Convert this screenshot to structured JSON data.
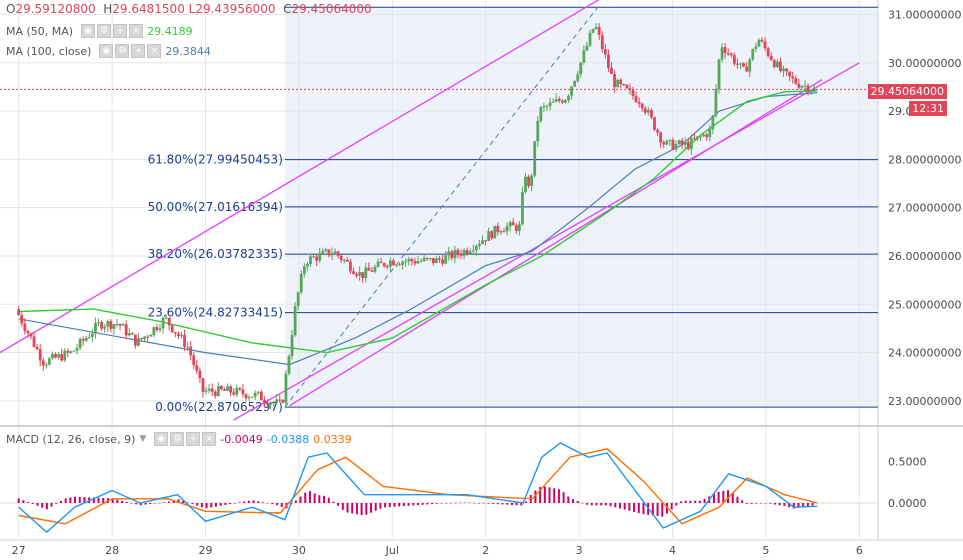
{
  "header": {
    "o_label": "O",
    "o_value": "29.59120800",
    "h_label": "H",
    "h_value": "29.6481500",
    "l_overlap": "29.6481500 L29.43956000",
    "c_label": "C",
    "c_value": "29.45064000"
  },
  "indicators": {
    "ma50": {
      "label": "MA (50, MA)",
      "value": "29.4189",
      "color": "#33cc33"
    },
    "ma100": {
      "label": "MA (100, close)",
      "value": "29.3844",
      "color": "#4a7fb0"
    },
    "macd": {
      "label": "MACD (12, 26, close, 9)",
      "v1": "-0.0049",
      "v2": "-0.0388",
      "v3": "0.0339",
      "c1": "#cc0066",
      "c2": "#2196f3",
      "c3": "#ff6d00"
    }
  },
  "price_tag": {
    "value": "29.45064000",
    "color": "#e0455a"
  },
  "time_tag": {
    "value": "12:31",
    "color": "#e0455a"
  },
  "colors": {
    "up": "#57a65b",
    "down": "#e0455a",
    "channel": "#e040fb",
    "fib": "#1a3e8c",
    "shade": "#eef2fb",
    "grid": "#e6e6e6"
  },
  "chart_data": {
    "type": "candlestick",
    "price_axis": {
      "min": 22.5,
      "max": 31.3,
      "ticks": [
        "23.00000000",
        "24.00000000",
        "25.00000000",
        "26.00000000",
        "27.00000000",
        "28.00000000",
        "29.00000000",
        "30.00000000",
        "31.00000000"
      ]
    },
    "x_axis": {
      "labels": [
        "27",
        "28",
        "29",
        "30",
        "Jul",
        "2",
        "3",
        "4",
        "5",
        "6"
      ]
    },
    "fibonacci": [
      {
        "label": "0.00%(22.87065297)",
        "value": 22.87065297
      },
      {
        "label": "23.60%(24.82733415)",
        "value": 24.82733415
      },
      {
        "label": "38.20%(26.03782335)",
        "value": 26.03782335
      },
      {
        "label": "50.00%(27.01616394)",
        "value": 27.01616394
      },
      {
        "label": "61.80%(27.99450453)",
        "value": 27.99450453
      },
      {
        "label": "",
        "value": 31.15
      }
    ],
    "close_path": [
      {
        "d": 27.0,
        "v": 24.9
      },
      {
        "d": 27.3,
        "v": 23.8
      },
      {
        "d": 27.6,
        "v": 24.0
      },
      {
        "d": 27.9,
        "v": 24.6
      },
      {
        "d": 28.1,
        "v": 24.6
      },
      {
        "d": 28.3,
        "v": 24.2
      },
      {
        "d": 28.6,
        "v": 24.7
      },
      {
        "d": 28.85,
        "v": 24.1
      },
      {
        "d": 29.0,
        "v": 23.2
      },
      {
        "d": 29.3,
        "v": 23.2
      },
      {
        "d": 29.6,
        "v": 23.1
      },
      {
        "d": 29.85,
        "v": 22.9
      },
      {
        "d": 30.0,
        "v": 25.0
      },
      {
        "d": 30.1,
        "v": 25.9
      },
      {
        "d": 30.4,
        "v": 26.1
      },
      {
        "d": 30.7,
        "v": 25.6
      },
      {
        "d": 31.0,
        "v": 25.9
      },
      {
        "d": 31.5,
        "v": 25.9
      },
      {
        "d": 31.8,
        "v": 26.1
      },
      {
        "d": 32.2,
        "v": 26.6
      },
      {
        "d": 32.4,
        "v": 26.6
      },
      {
        "d": 32.45,
        "v": 27.8
      },
      {
        "d": 32.5,
        "v": 27.3
      },
      {
        "d": 32.6,
        "v": 29.0
      },
      {
        "d": 32.9,
        "v": 29.3
      },
      {
        "d": 33.05,
        "v": 30.0
      },
      {
        "d": 33.2,
        "v": 30.8
      },
      {
        "d": 33.4,
        "v": 29.6
      },
      {
        "d": 33.7,
        "v": 29.2
      },
      {
        "d": 33.95,
        "v": 28.3
      },
      {
        "d": 34.2,
        "v": 28.3
      },
      {
        "d": 34.45,
        "v": 28.6
      },
      {
        "d": 34.55,
        "v": 30.4
      },
      {
        "d": 34.8,
        "v": 29.8
      },
      {
        "d": 34.95,
        "v": 30.5
      },
      {
        "d": 35.2,
        "v": 29.8
      },
      {
        "d": 35.35,
        "v": 29.6
      },
      {
        "d": 35.55,
        "v": 29.45
      }
    ],
    "ma50_path": [
      {
        "d": 27.0,
        "v": 24.85
      },
      {
        "d": 27.8,
        "v": 24.9
      },
      {
        "d": 28.5,
        "v": 24.65
      },
      {
        "d": 29.5,
        "v": 24.2
      },
      {
        "d": 30.3,
        "v": 24.0
      },
      {
        "d": 31.0,
        "v": 24.3
      },
      {
        "d": 32.0,
        "v": 25.4
      },
      {
        "d": 32.6,
        "v": 26.0
      },
      {
        "d": 33.3,
        "v": 26.9
      },
      {
        "d": 33.8,
        "v": 27.6
      },
      {
        "d": 34.3,
        "v": 28.5
      },
      {
        "d": 34.8,
        "v": 29.2
      },
      {
        "d": 35.2,
        "v": 29.4
      },
      {
        "d": 35.55,
        "v": 29.42
      }
    ],
    "ma100_path": [
      {
        "d": 27.0,
        "v": 24.7
      },
      {
        "d": 28.0,
        "v": 24.35
      },
      {
        "d": 29.0,
        "v": 24.0
      },
      {
        "d": 29.9,
        "v": 23.75
      },
      {
        "d": 30.6,
        "v": 24.3
      },
      {
        "d": 31.2,
        "v": 24.9
      },
      {
        "d": 32.0,
        "v": 25.8
      },
      {
        "d": 32.5,
        "v": 26.1
      },
      {
        "d": 33.1,
        "v": 27.0
      },
      {
        "d": 33.6,
        "v": 27.8
      },
      {
        "d": 34.1,
        "v": 28.3
      },
      {
        "d": 34.5,
        "v": 29.0
      },
      {
        "d": 35.0,
        "v": 29.3
      },
      {
        "d": 35.55,
        "v": 29.38
      }
    ],
    "channel": {
      "upper": [
        {
          "d": 26.8,
          "v": 24.0
        },
        {
          "d": 33.25,
          "v": 31.35
        }
      ],
      "lower": [
        {
          "d": 29.3,
          "v": 22.6
        },
        {
          "d": 36.0,
          "v": 30.0
        }
      ],
      "parallel": [
        {
          "d": 29.9,
          "v": 22.9
        },
        {
          "d": 35.6,
          "v": 29.65
        }
      ]
    },
    "trend_dashed": [
      {
        "d": 29.85,
        "v": 22.87
      },
      {
        "d": 33.2,
        "v": 31.15
      }
    ],
    "macd": {
      "axis": {
        "min": -0.42,
        "max": 0.9,
        "ticks": [
          "0.5000",
          "0.0000"
        ]
      },
      "macd_path": [
        {
          "d": 27.0,
          "v": -0.05
        },
        {
          "d": 27.3,
          "v": -0.35
        },
        {
          "d": 27.6,
          "v": -0.05
        },
        {
          "d": 28.0,
          "v": 0.15
        },
        {
          "d": 28.3,
          "v": 0.0
        },
        {
          "d": 28.7,
          "v": 0.1
        },
        {
          "d": 29.0,
          "v": -0.22
        },
        {
          "d": 29.5,
          "v": -0.05
        },
        {
          "d": 29.85,
          "v": -0.2
        },
        {
          "d": 30.1,
          "v": 0.55
        },
        {
          "d": 30.3,
          "v": 0.6
        },
        {
          "d": 30.7,
          "v": 0.1
        },
        {
          "d": 31.2,
          "v": 0.1
        },
        {
          "d": 31.8,
          "v": 0.1
        },
        {
          "d": 32.4,
          "v": 0.0
        },
        {
          "d": 32.6,
          "v": 0.55
        },
        {
          "d": 32.8,
          "v": 0.72
        },
        {
          "d": 33.1,
          "v": 0.55
        },
        {
          "d": 33.3,
          "v": 0.6
        },
        {
          "d": 33.6,
          "v": 0.15
        },
        {
          "d": 33.9,
          "v": -0.3
        },
        {
          "d": 34.3,
          "v": -0.1
        },
        {
          "d": 34.6,
          "v": 0.35
        },
        {
          "d": 35.0,
          "v": 0.2
        },
        {
          "d": 35.3,
          "v": -0.05
        },
        {
          "d": 35.55,
          "v": -0.04
        }
      ],
      "signal_path": [
        {
          "d": 27.0,
          "v": -0.15
        },
        {
          "d": 27.5,
          "v": -0.25
        },
        {
          "d": 28.0,
          "v": 0.05
        },
        {
          "d": 28.6,
          "v": 0.05
        },
        {
          "d": 29.0,
          "v": -0.1
        },
        {
          "d": 29.8,
          "v": -0.12
        },
        {
          "d": 30.2,
          "v": 0.4
        },
        {
          "d": 30.5,
          "v": 0.55
        },
        {
          "d": 30.9,
          "v": 0.2
        },
        {
          "d": 31.6,
          "v": 0.1
        },
        {
          "d": 32.5,
          "v": 0.05
        },
        {
          "d": 32.9,
          "v": 0.55
        },
        {
          "d": 33.3,
          "v": 0.65
        },
        {
          "d": 33.7,
          "v": 0.25
        },
        {
          "d": 34.1,
          "v": -0.25
        },
        {
          "d": 34.5,
          "v": -0.05
        },
        {
          "d": 34.8,
          "v": 0.3
        },
        {
          "d": 35.2,
          "v": 0.1
        },
        {
          "d": 35.55,
          "v": 0.0
        }
      ]
    }
  }
}
